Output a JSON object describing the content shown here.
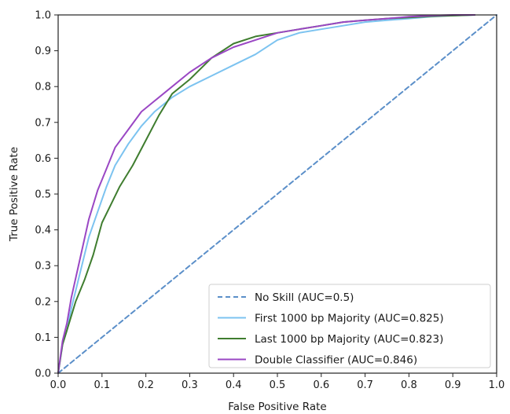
{
  "chart_data": {
    "type": "line",
    "title": "",
    "xlabel": "False Positive Rate",
    "ylabel": "True Positive Rate",
    "xlim": [
      0.0,
      1.0
    ],
    "ylim": [
      0.0,
      1.0
    ],
    "xticks": [
      "0.0",
      "0.1",
      "0.2",
      "0.3",
      "0.4",
      "0.5",
      "0.6",
      "0.7",
      "0.8",
      "0.9",
      "1.0"
    ],
    "yticks": [
      "0.0",
      "0.1",
      "0.2",
      "0.3",
      "0.4",
      "0.5",
      "0.6",
      "0.7",
      "0.8",
      "0.9",
      "1.0"
    ],
    "grid": false,
    "legend_position": "lower-right",
    "series": [
      {
        "name": "No Skill (AUC=0.5)",
        "color": "#5b8fc9",
        "dashed": true,
        "x": [
          0.0,
          1.0
        ],
        "y": [
          0.0,
          1.0
        ]
      },
      {
        "name": "First 1000 bp Majority (AUC=0.825)",
        "color": "#7cc3f0",
        "dashed": false,
        "x": [
          0.0,
          0.01,
          0.02,
          0.03,
          0.05,
          0.07,
          0.09,
          0.11,
          0.13,
          0.16,
          0.19,
          0.22,
          0.26,
          0.3,
          0.35,
          0.4,
          0.45,
          0.5,
          0.55,
          0.6,
          0.65,
          0.7,
          0.75,
          0.8,
          0.85,
          0.9,
          0.95
        ],
        "y": [
          0.0,
          0.08,
          0.12,
          0.18,
          0.28,
          0.38,
          0.45,
          0.52,
          0.58,
          0.64,
          0.69,
          0.73,
          0.77,
          0.8,
          0.83,
          0.86,
          0.89,
          0.93,
          0.95,
          0.96,
          0.97,
          0.98,
          0.985,
          0.99,
          0.995,
          0.998,
          1.0
        ]
      },
      {
        "name": "Last 1000 bp Majority (AUC=0.823)",
        "color": "#3f7d2f",
        "dashed": false,
        "x": [
          0.0,
          0.01,
          0.02,
          0.04,
          0.06,
          0.08,
          0.1,
          0.12,
          0.14,
          0.17,
          0.2,
          0.23,
          0.26,
          0.3,
          0.35,
          0.4,
          0.45,
          0.5,
          0.55,
          0.6,
          0.65,
          0.7,
          0.75,
          0.8,
          0.85,
          0.9,
          0.95
        ],
        "y": [
          0.0,
          0.08,
          0.12,
          0.2,
          0.26,
          0.33,
          0.42,
          0.47,
          0.52,
          0.58,
          0.65,
          0.72,
          0.78,
          0.82,
          0.88,
          0.92,
          0.94,
          0.95,
          0.96,
          0.97,
          0.98,
          0.985,
          0.99,
          0.993,
          0.996,
          0.998,
          1.0
        ]
      },
      {
        "name": "Double Classifier (AUC=0.846)",
        "color": "#9a47c4",
        "dashed": false,
        "x": [
          0.0,
          0.01,
          0.02,
          0.03,
          0.05,
          0.07,
          0.09,
          0.11,
          0.13,
          0.16,
          0.19,
          0.22,
          0.26,
          0.3,
          0.35,
          0.4,
          0.45,
          0.5,
          0.55,
          0.6,
          0.65,
          0.7,
          0.75,
          0.8,
          0.85,
          0.9,
          0.95
        ],
        "y": [
          0.0,
          0.09,
          0.14,
          0.21,
          0.32,
          0.43,
          0.51,
          0.57,
          0.63,
          0.68,
          0.73,
          0.76,
          0.8,
          0.84,
          0.88,
          0.91,
          0.93,
          0.95,
          0.96,
          0.97,
          0.98,
          0.985,
          0.99,
          0.995,
          0.998,
          1.0,
          1.0
        ]
      }
    ]
  }
}
